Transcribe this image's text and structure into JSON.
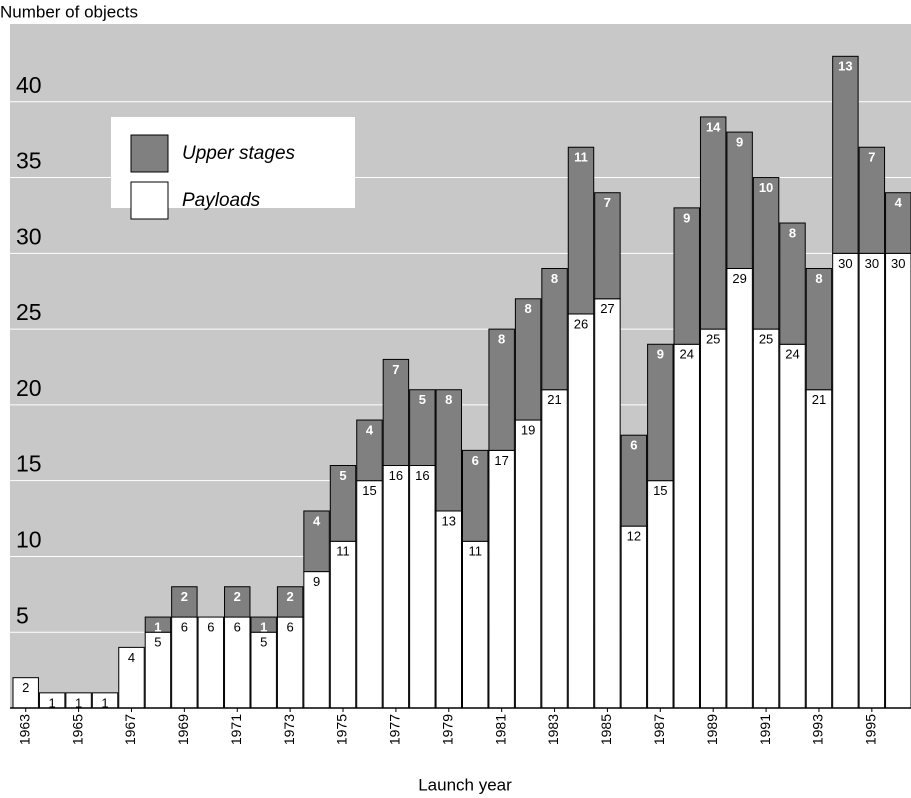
{
  "chart_data": {
    "type": "bar",
    "stacked": true,
    "ylabel": "Number of objects",
    "xlabel": "Launch year",
    "categories": [
      "1963",
      null,
      "1965",
      null,
      "1967",
      null,
      "1969",
      null,
      "1971",
      null,
      "1973",
      null,
      "1975",
      null,
      "1977",
      null,
      "1979",
      null,
      "1981",
      null,
      "1983",
      null,
      "1985",
      null,
      "1987",
      null,
      "1989",
      null,
      "1991",
      null,
      "1993",
      null,
      "1995",
      null
    ],
    "series": [
      {
        "name": "Upper stages",
        "color": "#808080",
        "values": [
          null,
          null,
          null,
          null,
          null,
          1,
          2,
          null,
          2,
          1,
          2,
          4,
          5,
          4,
          7,
          5,
          8,
          6,
          8,
          8,
          8,
          11,
          7,
          6,
          9,
          9,
          14,
          9,
          10,
          8,
          8,
          13,
          7,
          4
        ]
      },
      {
        "name": "Payloads",
        "color": "#ffffff",
        "values": [
          2,
          1,
          1,
          1,
          4,
          5,
          6,
          6,
          6,
          5,
          6,
          9,
          11,
          15,
          16,
          16,
          13,
          11,
          17,
          19,
          21,
          26,
          27,
          12,
          15,
          24,
          25,
          29,
          25,
          24,
          21,
          30,
          30,
          30
        ]
      }
    ],
    "ylim": [
      0,
      45
    ],
    "yticks": [
      5,
      10,
      15,
      20,
      25,
      30,
      35,
      40
    ],
    "grid": true,
    "background": "#c8c8c8",
    "legend": "upper left"
  }
}
